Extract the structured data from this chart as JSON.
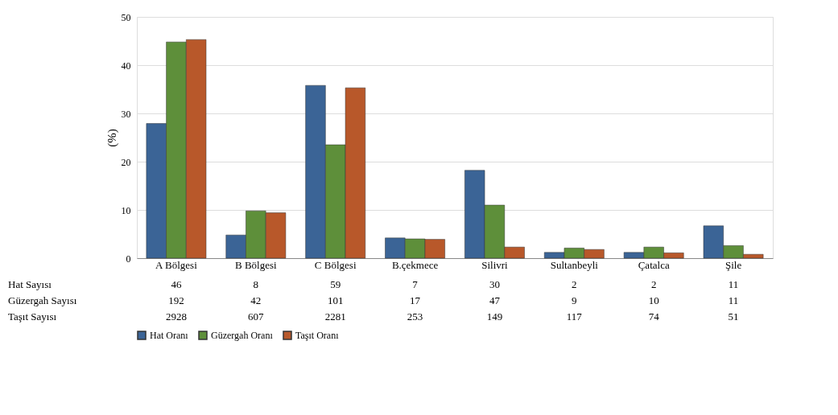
{
  "chart_data": {
    "type": "bar",
    "ylabel": "(%)",
    "categories": [
      "A Bölgesi",
      "B Bölgesi",
      "C Bölgesi",
      "B.çekmece",
      "Silivri",
      "Sultanbeyli",
      "Çatalca",
      "Şile"
    ],
    "series": [
      {
        "name": "Hat Oranı",
        "color": "#3b6496",
        "values": [
          27.9,
          4.8,
          35.8,
          4.2,
          18.2,
          1.2,
          1.2,
          6.7
        ]
      },
      {
        "name": "Güzergah Oranı",
        "color": "#5e8f3a",
        "values": [
          44.8,
          9.8,
          23.5,
          4.0,
          11.0,
          2.1,
          2.3,
          2.6
        ]
      },
      {
        "name": "Taşıt Oranı",
        "color": "#b8582a",
        "values": [
          45.3,
          9.4,
          35.3,
          3.9,
          2.3,
          1.8,
          1.1,
          0.8
        ]
      }
    ],
    "ylim": [
      0,
      50
    ],
    "yticks": [
      0,
      10,
      20,
      30,
      40,
      50
    ],
    "grid": "y",
    "legend": "bottom",
    "annotations": [
      "Hat Sayısı",
      "46",
      "8",
      "59",
      "7",
      "30",
      "2",
      "2",
      "11",
      "Güzergah Sayısı",
      "192",
      "42",
      "101",
      "17",
      "47",
      "9",
      "10",
      "11",
      "Taşıt Sayısı",
      "2928",
      "607",
      "2281",
      "253",
      "149",
      "117",
      "74",
      "51"
    ]
  }
}
